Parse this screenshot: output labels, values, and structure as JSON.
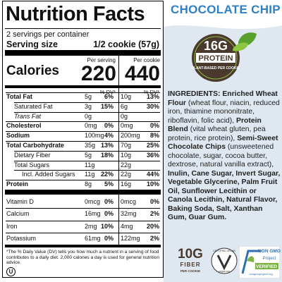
{
  "flavor": "CHOCOLATE CHIP",
  "nutrition": {
    "title": "Nutrition Facts",
    "servings": "2 servings per container",
    "serving_size_label": "Serving size",
    "serving_size_value": "1/2 cookie (57g)",
    "calories_label": "Calories",
    "column_headers": [
      "Per serving",
      "Per cookie"
    ],
    "calories": [
      "220",
      "440"
    ],
    "dv_headers": [
      "% DV*",
      "% DV*"
    ],
    "rows": [
      [
        "Total Fat",
        "5g",
        "6%",
        "10g",
        "13%"
      ],
      [
        "Saturated Fat",
        "3g",
        "15%",
        "6g",
        "30%"
      ],
      [
        "Trans Fat",
        "0g",
        null,
        "0g",
        null
      ],
      [
        "Cholesterol",
        "0mg",
        "0%",
        "0mg",
        "0%"
      ],
      [
        "Sodium",
        "100mg",
        "4%",
        "200mg",
        "8%"
      ],
      [
        "Total Carbohydrate",
        "35g",
        "13%",
        "70g",
        "25%"
      ],
      [
        "Dietary Fiber",
        "5g",
        "18%",
        "10g",
        "36%"
      ],
      [
        "Total Sugars",
        "11g",
        null,
        "22g",
        null
      ],
      [
        "Incl. Added Sugars",
        "11g",
        "22%",
        "22g",
        "44%"
      ],
      [
        "Protein",
        "8g",
        "5%",
        "16g",
        "10%"
      ],
      [
        "Vitamin D",
        "0mcg",
        "0%",
        "0mcg",
        "0%"
      ],
      [
        "Calcium",
        "16mg",
        "0%",
        "32mg",
        "2%"
      ],
      [
        "Iron",
        "2mg",
        "10%",
        "4mg",
        "20%"
      ],
      [
        "Potassium",
        "61mg",
        "0%",
        "122mg",
        "2%"
      ]
    ],
    "footnote": "*The % Daily Value (DV) tells you how much a nutrient in a serving of food contributes to a daily diet. 2,000 calories a day is used for general nutrition advice.",
    "kosher_mark": "U"
  },
  "protein_badge": {
    "amount": "16G",
    "label": "PROTEIN",
    "sub": "PLANT-BASED PER COOKIE"
  },
  "ingredients": [
    {
      "text": "INGREDIENTS: Enriched Wheat Flour ",
      "bold": true
    },
    {
      "text": "(wheat flour, niacin, reduced iron, thiamine mononitrate, riboflavin, folic acid), ",
      "bold": false
    },
    {
      "text": "Protein Blend ",
      "bold": true
    },
    {
      "text": "(vital wheat gluten, pea protein, rice protein), ",
      "bold": false
    },
    {
      "text": "Semi-Sweet Chocolate Chips ",
      "bold": true
    },
    {
      "text": "(unsweetened chocolate, sugar, cocoa butter, dextrose, natural vanilla extract), ",
      "bold": false
    },
    {
      "text": "Inulin, Cane Sugar, Invert Sugar, Vegetable Glycerine, Palm Fruit Oil, Sunflower Lecithin or Canola Lecithin, Natural Flavor, Baking Soda, Salt, Xanthan Gum, Guar Gum.",
      "bold": true
    }
  ],
  "fiber_badge": {
    "amount": "10G",
    "label": "FIBER",
    "sub": "PER COOKIE"
  },
  "vegan_badge": {
    "top": "CERTIFIED VEGAN",
    "bottom": "vegan.org"
  },
  "nongmo_badge": {
    "top": "NON GMO",
    "middle": "Project",
    "verified": "VERIFIED",
    "url": "nongmoproject.org"
  }
}
